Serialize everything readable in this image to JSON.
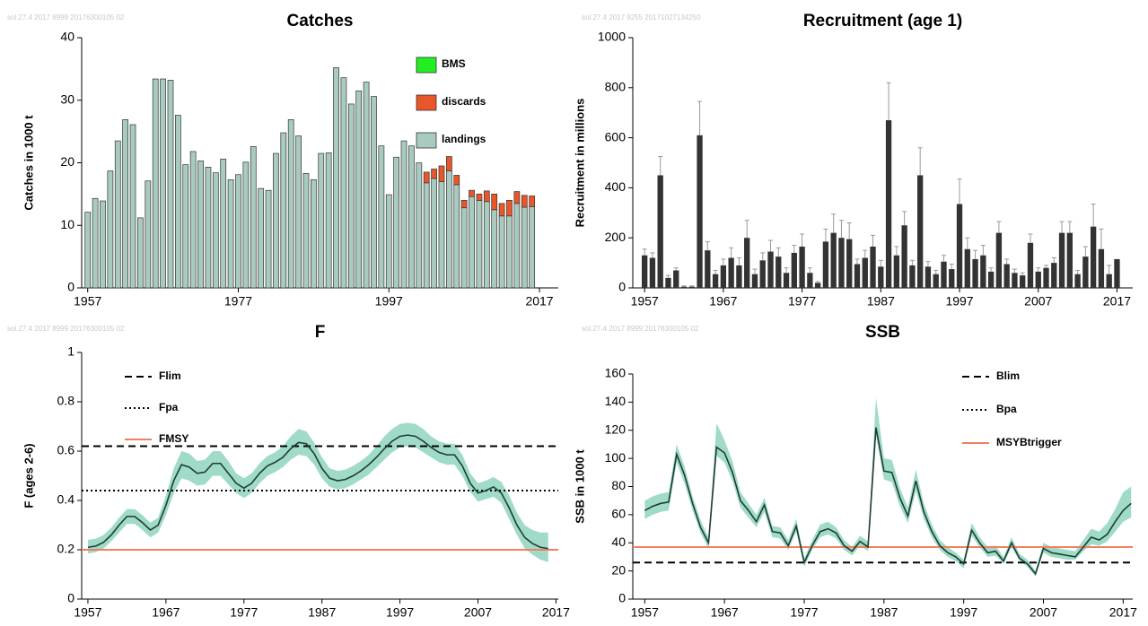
{
  "chart_data": [
    {
      "type": "stacked_bar",
      "title": "Catches",
      "stamp": "sol.27.4  2017  8999  20176300105 02",
      "ylabel": "Catches in 1000 t",
      "x": [
        1957,
        1958,
        1959,
        1960,
        1961,
        1962,
        1963,
        1964,
        1965,
        1966,
        1967,
        1968,
        1969,
        1970,
        1971,
        1972,
        1973,
        1974,
        1975,
        1976,
        1977,
        1978,
        1979,
        1980,
        1981,
        1982,
        1983,
        1984,
        1985,
        1986,
        1987,
        1988,
        1989,
        1990,
        1991,
        1992,
        1993,
        1994,
        1995,
        1996,
        1997,
        1998,
        1999,
        2000,
        2001,
        2002,
        2003,
        2004,
        2005,
        2006,
        2007,
        2008,
        2009,
        2010,
        2011,
        2012,
        2013,
        2014,
        2015,
        2016
      ],
      "xlim": [
        1956.2,
        2019.5
      ],
      "xticks": [
        1957,
        1977,
        1997,
        2017
      ],
      "ylim": [
        0,
        40
      ],
      "yticks": [
        0,
        10,
        20,
        30,
        40
      ],
      "legend": "upper right",
      "series": [
        {
          "name": "BMS",
          "color": "#22ee22",
          "values": [
            null,
            null,
            null,
            null,
            null,
            null,
            null,
            null,
            null,
            null,
            null,
            null,
            null,
            null,
            null,
            null,
            null,
            null,
            null,
            null,
            null,
            null,
            null,
            null,
            null,
            null,
            null,
            null,
            null,
            null,
            null,
            null,
            null,
            null,
            null,
            null,
            null,
            null,
            null,
            null,
            null,
            null,
            null,
            null,
            null,
            null,
            null,
            null,
            null,
            null,
            null,
            null,
            null,
            null,
            null,
            null,
            null,
            null,
            null,
            null
          ]
        },
        {
          "name": "discards",
          "color": "#e8572a",
          "values": [
            null,
            null,
            null,
            null,
            null,
            null,
            null,
            null,
            null,
            null,
            null,
            null,
            null,
            null,
            null,
            null,
            null,
            null,
            null,
            null,
            null,
            null,
            null,
            null,
            null,
            null,
            null,
            null,
            null,
            null,
            null,
            null,
            null,
            null,
            null,
            null,
            null,
            null,
            null,
            null,
            null,
            null,
            null,
            null,
            null,
            1.7,
            1.5,
            2.5,
            2.3,
            1.5,
            1.2,
            1.0,
            1.0,
            1.7,
            2.5,
            2.0,
            2.5,
            1.9,
            1.9,
            1.7
          ]
        },
        {
          "name": "landings",
          "color": "#a9cbbf",
          "values": [
            12.1,
            14.3,
            13.9,
            18.7,
            23.5,
            26.9,
            26.1,
            11.2,
            17.1,
            33.4,
            33.4,
            33.2,
            27.6,
            19.7,
            21.8,
            20.3,
            19.3,
            18.4,
            20.6,
            17.3,
            18.1,
            20.1,
            22.6,
            15.9,
            15.6,
            21.5,
            24.8,
            26.9,
            24.3,
            18.3,
            17.3,
            21.5,
            21.6,
            35.2,
            33.6,
            29.4,
            31.5,
            32.9,
            30.6,
            22.7,
            14.9,
            20.9,
            23.5,
            22.7,
            20.0,
            16.8,
            17.5,
            17.0,
            18.7,
            16.5,
            12.8,
            14.6,
            14.0,
            13.8,
            12.5,
            11.5,
            11.5,
            13.5,
            12.9,
            13.0
          ]
        }
      ]
    },
    {
      "type": "bar",
      "title": "Recruitment (age 1)",
      "stamp": "sol.27.4  2017  9255  20171027134250",
      "ylabel": "Recruitment in millions",
      "x": [
        1957,
        1958,
        1959,
        1960,
        1961,
        1962,
        1963,
        1964,
        1965,
        1966,
        1967,
        1968,
        1969,
        1970,
        1971,
        1972,
        1973,
        1974,
        1975,
        1976,
        1977,
        1978,
        1979,
        1980,
        1981,
        1982,
        1983,
        1984,
        1985,
        1986,
        1987,
        1988,
        1989,
        1990,
        1991,
        1992,
        1993,
        1994,
        1995,
        1996,
        1997,
        1998,
        1999,
        2000,
        2001,
        2002,
        2003,
        2004,
        2005,
        2006,
        2007,
        2008,
        2009,
        2010,
        2011,
        2012,
        2013,
        2014,
        2015,
        2016,
        2017
      ],
      "xlim": [
        1955.5,
        2019
      ],
      "xticks": [
        1957,
        1967,
        1977,
        1987,
        1997,
        2007,
        2017
      ],
      "ylim": [
        0,
        1000
      ],
      "yticks": [
        0,
        200,
        400,
        600,
        800,
        1000
      ],
      "color": "#333333",
      "error_color": "#999999",
      "values": [
        130,
        120,
        450,
        40,
        70,
        5,
        5,
        610,
        150,
        55,
        90,
        120,
        90,
        200,
        55,
        110,
        145,
        125,
        60,
        140,
        165,
        60,
        20,
        185,
        220,
        200,
        195,
        95,
        120,
        165,
        85,
        670,
        130,
        250,
        90,
        450,
        85,
        55,
        105,
        75,
        335,
        155,
        115,
        130,
        65,
        220,
        95,
        60,
        50,
        180,
        65,
        80,
        100,
        220,
        220,
        55,
        125,
        245,
        155,
        55,
        115
      ],
      "high": [
        155,
        140,
        525,
        50,
        80,
        8,
        8,
        745,
        185,
        70,
        115,
        160,
        120,
        270,
        75,
        140,
        190,
        160,
        80,
        170,
        215,
        80,
        25,
        235,
        295,
        270,
        260,
        115,
        150,
        210,
        110,
        820,
        165,
        305,
        110,
        560,
        105,
        70,
        130,
        95,
        435,
        200,
        150,
        170,
        80,
        265,
        115,
        75,
        60,
        215,
        80,
        90,
        120,
        265,
        265,
        70,
        165,
        335,
        235,
        90,
        null
      ]
    },
    {
      "type": "line",
      "title": "F",
      "stamp": "sol.27.4  2017  8999  20176300105 02",
      "ylabel": "F (ages 2-6)",
      "x": [
        1957,
        1958,
        1959,
        1960,
        1961,
        1962,
        1963,
        1964,
        1965,
        1966,
        1967,
        1968,
        1969,
        1970,
        1971,
        1972,
        1973,
        1974,
        1975,
        1976,
        1977,
        1978,
        1979,
        1980,
        1981,
        1982,
        1983,
        1984,
        1985,
        1986,
        1987,
        1988,
        1989,
        1990,
        1991,
        1992,
        1993,
        1994,
        1995,
        1996,
        1997,
        1998,
        1999,
        2000,
        2001,
        2002,
        2003,
        2004,
        2005,
        2006,
        2007,
        2008,
        2009,
        2010,
        2011,
        2012,
        2013,
        2014,
        2015,
        2016
      ],
      "xlim": [
        1956.2,
        2017.3
      ],
      "xticks": [
        1957,
        1967,
        1977,
        1987,
        1997,
        2007,
        2017
      ],
      "ylim": [
        0,
        1
      ],
      "yticks": [
        0,
        0.2,
        0.4,
        0.6,
        0.8,
        1
      ],
      "legend": "upper left",
      "color": "#1f3d33",
      "band_color": "#7fcfb5",
      "values": [
        0.21,
        0.215,
        0.23,
        0.26,
        0.3,
        0.335,
        0.335,
        0.31,
        0.28,
        0.3,
        0.38,
        0.48,
        0.545,
        0.535,
        0.51,
        0.515,
        0.55,
        0.55,
        0.51,
        0.47,
        0.45,
        0.47,
        0.51,
        0.54,
        0.555,
        0.575,
        0.61,
        0.635,
        0.63,
        0.59,
        0.53,
        0.49,
        0.48,
        0.485,
        0.5,
        0.52,
        0.545,
        0.575,
        0.61,
        0.64,
        0.66,
        0.665,
        0.66,
        0.64,
        0.615,
        0.595,
        0.585,
        0.585,
        0.54,
        0.47,
        0.43,
        0.44,
        0.455,
        0.43,
        0.37,
        0.3,
        0.25,
        0.225,
        0.21,
        0.205
      ],
      "low": [
        0.185,
        0.19,
        0.205,
        0.235,
        0.27,
        0.305,
        0.305,
        0.28,
        0.25,
        0.27,
        0.34,
        0.43,
        0.49,
        0.48,
        0.46,
        0.465,
        0.5,
        0.5,
        0.465,
        0.43,
        0.41,
        0.43,
        0.47,
        0.5,
        0.515,
        0.535,
        0.565,
        0.585,
        0.58,
        0.545,
        0.49,
        0.455,
        0.445,
        0.45,
        0.465,
        0.485,
        0.505,
        0.535,
        0.565,
        0.595,
        0.615,
        0.62,
        0.615,
        0.595,
        0.575,
        0.555,
        0.545,
        0.545,
        0.5,
        0.435,
        0.395,
        0.405,
        0.415,
        0.39,
        0.325,
        0.26,
        0.205,
        0.18,
        0.16,
        0.15
      ],
      "high": [
        0.24,
        0.245,
        0.26,
        0.29,
        0.33,
        0.365,
        0.365,
        0.34,
        0.31,
        0.33,
        0.42,
        0.53,
        0.6,
        0.59,
        0.56,
        0.565,
        0.6,
        0.6,
        0.56,
        0.51,
        0.49,
        0.51,
        0.55,
        0.58,
        0.595,
        0.62,
        0.66,
        0.69,
        0.68,
        0.635,
        0.575,
        0.53,
        0.52,
        0.525,
        0.54,
        0.56,
        0.585,
        0.62,
        0.66,
        0.69,
        0.71,
        0.715,
        0.71,
        0.69,
        0.66,
        0.64,
        0.63,
        0.63,
        0.585,
        0.51,
        0.47,
        0.48,
        0.495,
        0.475,
        0.42,
        0.35,
        0.3,
        0.28,
        0.27,
        0.27
      ],
      "reference_lines": [
        {
          "name": "Flim",
          "value": 0.62,
          "color": "#000000",
          "style": "dashed"
        },
        {
          "name": "Fpa",
          "value": 0.44,
          "color": "#000000",
          "style": "dotted"
        },
        {
          "name": "FMSY",
          "value": 0.2,
          "color": "#f08060",
          "style": "solid"
        }
      ]
    },
    {
      "type": "line",
      "title": "SSB",
      "stamp": "sol.27.4  2017  8999  20176300105 02",
      "ylabel": "SSB in 1000 t",
      "x": [
        1957,
        1958,
        1959,
        1960,
        1961,
        1962,
        1963,
        1964,
        1965,
        1966,
        1967,
        1968,
        1969,
        1970,
        1971,
        1972,
        1973,
        1974,
        1975,
        1976,
        1977,
        1978,
        1979,
        1980,
        1981,
        1982,
        1983,
        1984,
        1985,
        1986,
        1987,
        1988,
        1989,
        1990,
        1991,
        1992,
        1993,
        1994,
        1995,
        1996,
        1997,
        1998,
        1999,
        2000,
        2001,
        2002,
        2003,
        2004,
        2005,
        2006,
        2007,
        2008,
        2009,
        2010,
        2011,
        2012,
        2013,
        2014,
        2015,
        2016,
        2017,
        2018
      ],
      "xlim": [
        1955.5,
        2018.2
      ],
      "xticks": [
        1957,
        1967,
        1977,
        1987,
        1997,
        2007,
        2017
      ],
      "ylim": [
        0,
        160
      ],
      "yticks": [
        0,
        20,
        40,
        60,
        80,
        100,
        120,
        140,
        160
      ],
      "legend": "upper right",
      "color": "#1f3d33",
      "band_color": "#7fcfb5",
      "values": [
        63,
        66,
        68,
        69,
        103,
        88,
        68,
        51,
        40,
        108,
        104,
        90,
        70,
        63,
        55,
        67,
        48,
        47,
        38,
        52,
        26,
        38,
        48,
        50,
        47,
        38,
        34,
        41,
        37,
        122,
        91,
        90,
        72,
        59,
        84,
        62,
        48,
        38,
        33,
        30,
        25,
        49,
        40,
        33,
        34,
        27,
        40,
        29,
        25,
        18,
        36,
        33,
        32,
        31,
        30,
        37,
        44,
        42,
        46,
        55,
        63,
        68
      ],
      "low": [
        57,
        60,
        62,
        63,
        97,
        82,
        63,
        47,
        36,
        102,
        97,
        84,
        65,
        58,
        51,
        62,
        44,
        43,
        35,
        48,
        23,
        35,
        44,
        46,
        43,
        35,
        31,
        38,
        34,
        116,
        85,
        83,
        66,
        54,
        77,
        57,
        44,
        35,
        30,
        27,
        22,
        45,
        37,
        30,
        31,
        25,
        37,
        27,
        23,
        16,
        33,
        30,
        29,
        28,
        28,
        34,
        39,
        38,
        41,
        48,
        55,
        58
      ],
      "high": [
        70,
        73,
        75,
        76,
        110,
        94,
        73,
        56,
        44,
        125,
        113,
        98,
        76,
        68,
        60,
        72,
        52,
        51,
        42,
        57,
        29,
        42,
        53,
        55,
        51,
        42,
        37,
        45,
        41,
        143,
        100,
        99,
        79,
        65,
        92,
        68,
        53,
        42,
        37,
        33,
        28,
        54,
        44,
        37,
        38,
        30,
        44,
        32,
        28,
        20,
        40,
        37,
        36,
        35,
        34,
        42,
        50,
        48,
        54,
        64,
        76,
        80
      ],
      "reference_lines": [
        {
          "name": "Blim",
          "value": 26,
          "color": "#000000",
          "style": "dashed"
        },
        {
          "name": "Bpa",
          "value": 37,
          "color": "#000000",
          "style": "dotted"
        },
        {
          "name": "MSYBtrigger",
          "value": 37,
          "color": "#f08060",
          "style": "solid"
        }
      ]
    }
  ]
}
